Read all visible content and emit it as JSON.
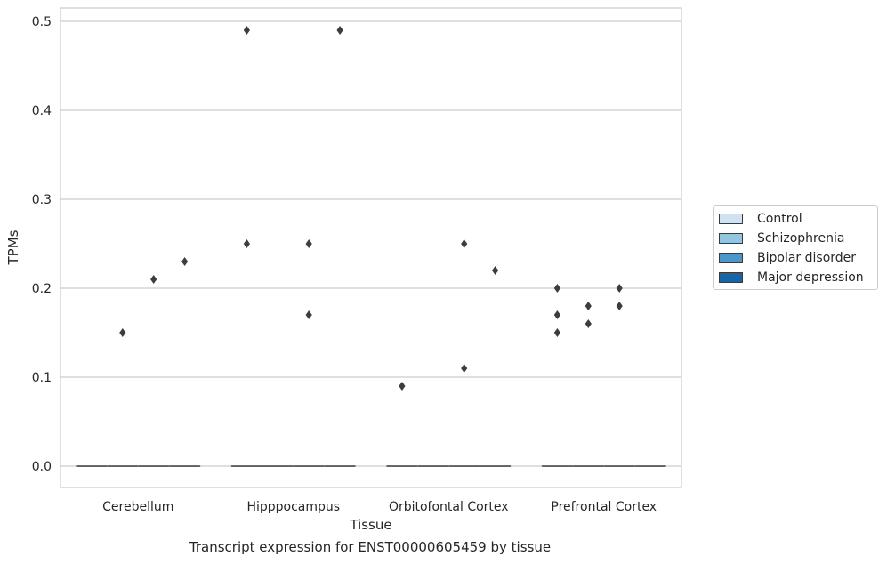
{
  "chart_data": {
    "type": "box",
    "title": "",
    "caption": "Transcript expression for ENST00000605459 by tissue",
    "xlabel": "Tissue",
    "ylabel": "TPMs",
    "ylim": [
      -0.024,
      0.515
    ],
    "yticks": [
      "0.0",
      "0.1",
      "0.2",
      "0.3",
      "0.4",
      "0.5"
    ],
    "ytick_values": [
      0.0,
      0.1,
      0.2,
      0.3,
      0.4,
      0.5
    ],
    "categories": [
      "Cerebellum",
      "Hipppocampus",
      "Orbitofontal Cortex",
      "Prefrontal Cortex"
    ],
    "grid": "horizontal",
    "legend_position": "right",
    "series": [
      {
        "name": "Control",
        "color": "#d0e1f2",
        "boxes": [
          {
            "median": 0.0,
            "q1": 0.0,
            "q3": 0.0
          },
          {
            "median": 0.0,
            "q1": 0.0,
            "q3": 0.0
          },
          {
            "median": 0.0,
            "q1": 0.0,
            "q3": 0.0
          },
          {
            "median": 0.0,
            "q1": 0.0,
            "q3": 0.0
          }
        ],
        "outliers": [
          [],
          [
            0.49,
            0.25
          ],
          [
            0.09
          ],
          [
            0.2,
            0.17,
            0.15
          ]
        ]
      },
      {
        "name": "Schizophrenia",
        "color": "#94c4df",
        "boxes": [
          {
            "median": 0.0,
            "q1": 0.0,
            "q3": 0.0
          },
          {
            "median": 0.0,
            "q1": 0.0,
            "q3": 0.0
          },
          {
            "median": 0.0,
            "q1": 0.0,
            "q3": 0.0
          },
          {
            "median": 0.0,
            "q1": 0.0,
            "q3": 0.0
          }
        ],
        "outliers": [
          [
            0.15
          ],
          [],
          [],
          [
            0.18,
            0.16
          ]
        ]
      },
      {
        "name": "Bipolar disorder",
        "color": "#4a98c9",
        "boxes": [
          {
            "median": 0.0,
            "q1": 0.0,
            "q3": 0.0
          },
          {
            "median": 0.0,
            "q1": 0.0,
            "q3": 0.0
          },
          {
            "median": 0.0,
            "q1": 0.0,
            "q3": 0.0
          },
          {
            "median": 0.0,
            "q1": 0.0,
            "q3": 0.0
          }
        ],
        "outliers": [
          [
            0.21
          ],
          [
            0.25,
            0.17
          ],
          [
            0.25,
            0.11
          ],
          [
            0.2,
            0.18
          ]
        ]
      },
      {
        "name": "Major depression",
        "color": "#1764ab",
        "boxes": [
          {
            "median": 0.0,
            "q1": 0.0,
            "q3": 0.0
          },
          {
            "median": 0.0,
            "q1": 0.0,
            "q3": 0.0
          },
          {
            "median": 0.0,
            "q1": 0.0,
            "q3": 0.0
          },
          {
            "median": 0.0,
            "q1": 0.0,
            "q3": 0.0
          }
        ],
        "outliers": [
          [
            0.23
          ],
          [
            0.49
          ],
          [
            0.22
          ],
          []
        ]
      }
    ]
  }
}
